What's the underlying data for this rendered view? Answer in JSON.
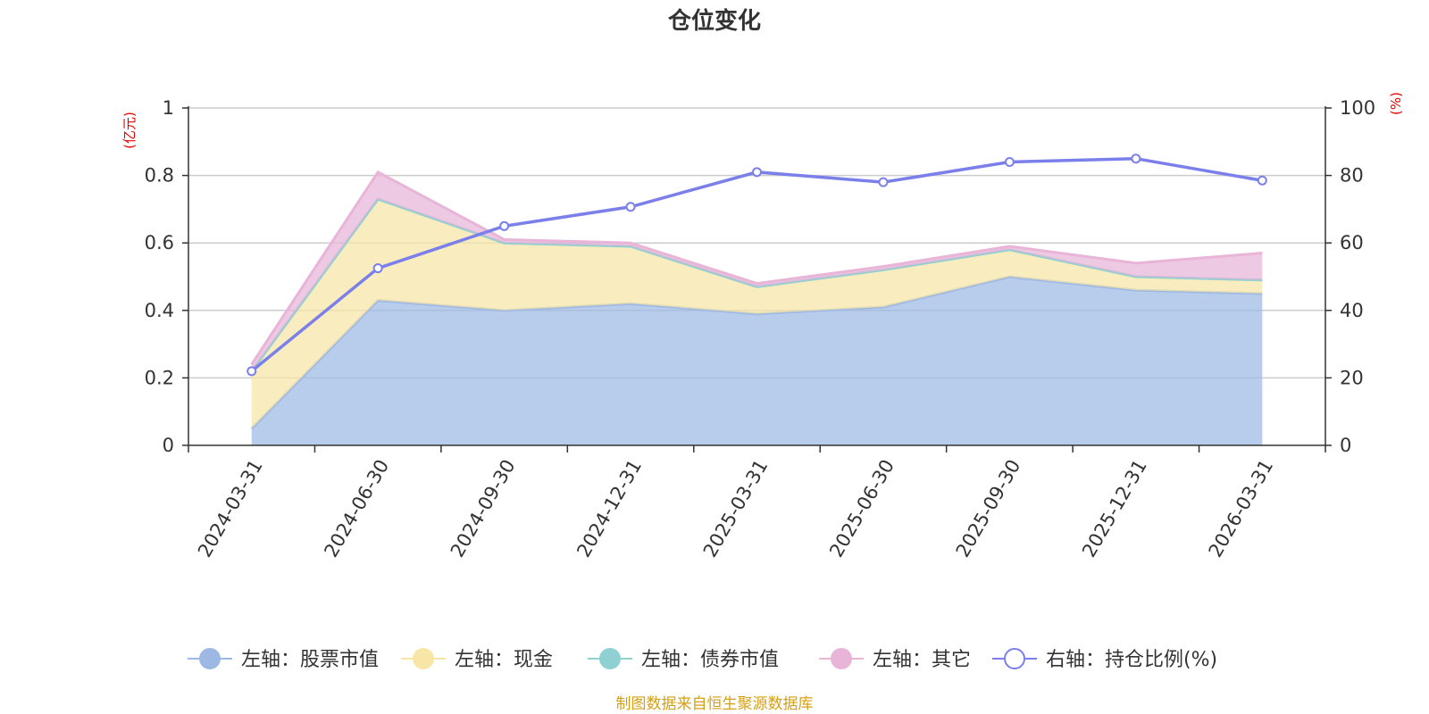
{
  "chart_data": {
    "type": "area",
    "title": "仓位变化",
    "left_axis_unit": "(亿元)",
    "right_axis_unit": "(%)",
    "left_ylim": [
      0,
      1
    ],
    "right_ylim": [
      0,
      100
    ],
    "left_ticks": [
      "0",
      "0.2",
      "0.4",
      "0.6",
      "0.8",
      "1"
    ],
    "right_ticks": [
      "0",
      "20",
      "40",
      "60",
      "80",
      "100"
    ],
    "categories": [
      "2024-03-31",
      "2024-06-30",
      "2024-09-30",
      "2024-12-31",
      "2025-03-31",
      "2025-06-30",
      "2025-09-30",
      "2025-12-31",
      "2026-03-31"
    ],
    "series": [
      {
        "name": "左轴：股票市值",
        "axis": "left",
        "stack": true,
        "color": "#9db8e3",
        "values": [
          0.05,
          0.43,
          0.4,
          0.42,
          0.39,
          0.41,
          0.5,
          0.46,
          0.45
        ]
      },
      {
        "name": "左轴：现金",
        "axis": "left",
        "stack": true,
        "color": "#f7e6a6",
        "values": [
          0.17,
          0.3,
          0.2,
          0.17,
          0.08,
          0.11,
          0.08,
          0.04,
          0.04
        ]
      },
      {
        "name": "左轴：债券市值",
        "axis": "left",
        "stack": true,
        "color": "#8fd0d3",
        "values": [
          0,
          0,
          0,
          0,
          0,
          0,
          0,
          0,
          0
        ]
      },
      {
        "name": "左轴：其它",
        "axis": "left",
        "stack": true,
        "color": "#e8b4d8",
        "values": [
          0.02,
          0.08,
          0.01,
          0.01,
          0.01,
          0.01,
          0.01,
          0.04,
          0.08
        ]
      },
      {
        "name": "右轴：持仓比例(%)",
        "axis": "right",
        "type": "line",
        "color": "#7b7fea",
        "values": [
          22,
          52.5,
          65,
          70.7,
          81,
          78,
          84,
          85,
          78.5
        ]
      }
    ],
    "legend_position": "bottom",
    "grid": true
  },
  "footer": {
    "source": "制图数据来自恒生聚源数据库"
  }
}
